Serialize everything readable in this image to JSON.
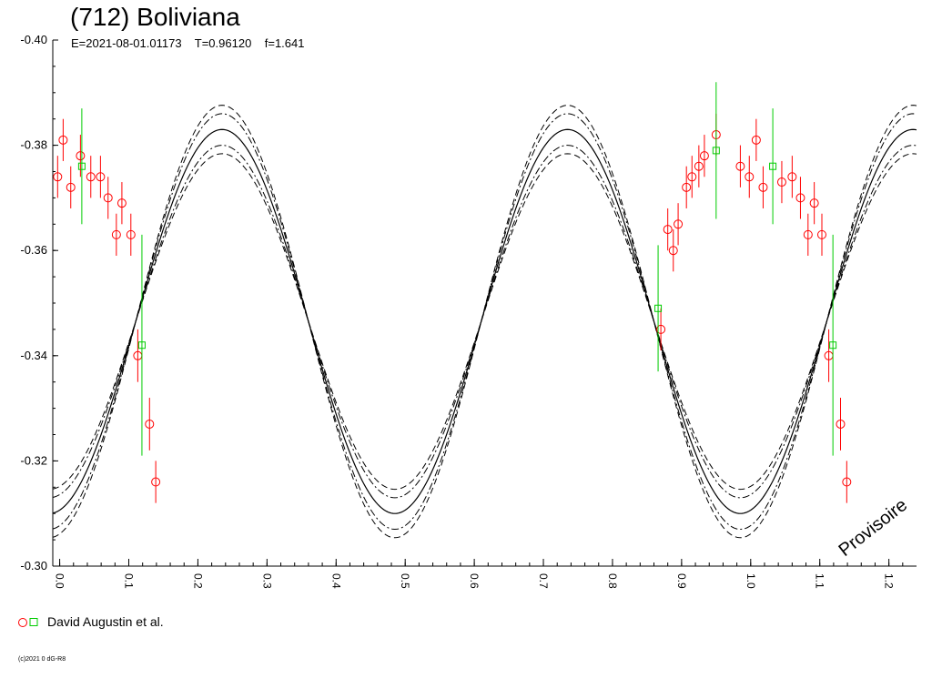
{
  "header": {
    "title": "(712) Boliviana",
    "subtitle": "E=2021-08-01.01173    T=0.96120    f=1.641"
  },
  "legend": {
    "label": "David Augustin et al.",
    "marker_colors": [
      "#ff0000",
      "#00cc00"
    ]
  },
  "watermark": "Provisoire",
  "copyright": "(c)2021 0 dG-R8",
  "colors": {
    "fit": "#000000",
    "obs_red": "#ff0000",
    "obs_green": "#00cc00"
  },
  "chart_data": {
    "type": "scatter",
    "xlim": [
      -0.01,
      1.24
    ],
    "ylim": [
      -0.3,
      -0.4
    ],
    "y_axis_inverted": true,
    "xticks": [
      0.0,
      0.1,
      0.2,
      0.3,
      0.4,
      0.5,
      0.6,
      0.7,
      0.8,
      0.9,
      1.0,
      1.1,
      1.2
    ],
    "xtick_labels": [
      "0.0",
      "0.1",
      "0.2",
      "0.3",
      "0.4",
      "0.5",
      "0.6",
      "0.7",
      "0.8",
      "0.9",
      "1.0",
      "1.1",
      "1.2"
    ],
    "yticks": [
      -0.3,
      -0.32,
      -0.34,
      -0.36,
      -0.38,
      -0.4
    ],
    "ytick_labels": [
      "-0.30",
      "-0.32",
      "-0.34",
      "-0.36",
      "-0.38",
      "-0.40"
    ],
    "fit": {
      "model": "mag = center + amplitude * cos(4*pi*(phase - phase_max))",
      "center": -0.3465,
      "amplitude": 0.0365,
      "phase_max": 0.485,
      "envelopes": [
        {
          "style": "dashdot",
          "offsets": [
            -0.003,
            0.003
          ]
        },
        {
          "style": "dashed",
          "offsets": [
            -0.0046,
            0.0046
          ]
        }
      ]
    },
    "series": [
      {
        "color": "#ff0000",
        "marker": "circle",
        "points": [
          {
            "x": -0.003,
            "y": -0.374,
            "err": 0.004
          },
          {
            "x": 0.005,
            "y": -0.381,
            "err": 0.004
          },
          {
            "x": 0.016,
            "y": -0.372,
            "err": 0.004
          },
          {
            "x": 0.03,
            "y": -0.378,
            "err": 0.004
          },
          {
            "x": 0.045,
            "y": -0.374,
            "err": 0.004
          },
          {
            "x": 0.059,
            "y": -0.374,
            "err": 0.004
          },
          {
            "x": 0.07,
            "y": -0.37,
            "err": 0.004
          },
          {
            "x": 0.082,
            "y": -0.363,
            "err": 0.004
          },
          {
            "x": 0.09,
            "y": -0.369,
            "err": 0.004
          },
          {
            "x": 0.103,
            "y": -0.363,
            "err": 0.004
          },
          {
            "x": 0.113,
            "y": -0.34,
            "err": 0.005
          },
          {
            "x": 0.13,
            "y": -0.327,
            "err": 0.005
          },
          {
            "x": 0.139,
            "y": -0.316,
            "err": 0.004
          },
          {
            "x": 0.87,
            "y": -0.345,
            "err": 0.004
          },
          {
            "x": 0.88,
            "y": -0.364,
            "err": 0.004
          },
          {
            "x": 0.888,
            "y": -0.36,
            "err": 0.004
          },
          {
            "x": 0.895,
            "y": -0.365,
            "err": 0.004
          },
          {
            "x": 0.907,
            "y": -0.372,
            "err": 0.004
          },
          {
            "x": 0.915,
            "y": -0.374,
            "err": 0.004
          },
          {
            "x": 0.925,
            "y": -0.376,
            "err": 0.004
          },
          {
            "x": 0.933,
            "y": -0.378,
            "err": 0.004
          },
          {
            "x": 0.95,
            "y": -0.382,
            "err": 0.004
          },
          {
            "x": 0.985,
            "y": -0.376,
            "err": 0.004
          },
          {
            "x": 0.998,
            "y": -0.374,
            "err": 0.004
          },
          {
            "x": 1.008,
            "y": -0.381,
            "err": 0.004
          },
          {
            "x": 1.018,
            "y": -0.372,
            "err": 0.004
          },
          {
            "x": 1.045,
            "y": -0.373,
            "err": 0.004
          },
          {
            "x": 1.06,
            "y": -0.374,
            "err": 0.004
          },
          {
            "x": 1.072,
            "y": -0.37,
            "err": 0.004
          },
          {
            "x": 1.083,
            "y": -0.363,
            "err": 0.004
          },
          {
            "x": 1.092,
            "y": -0.369,
            "err": 0.004
          },
          {
            "x": 1.103,
            "y": -0.363,
            "err": 0.004
          },
          {
            "x": 1.113,
            "y": -0.34,
            "err": 0.005
          },
          {
            "x": 1.13,
            "y": -0.327,
            "err": 0.005
          },
          {
            "x": 1.139,
            "y": -0.316,
            "err": 0.004
          }
        ]
      },
      {
        "color": "#00cc00",
        "marker": "square",
        "points": [
          {
            "x": 0.032,
            "y": -0.376,
            "err": 0.011
          },
          {
            "x": 0.119,
            "y": -0.342,
            "err": 0.021
          },
          {
            "x": 0.866,
            "y": -0.349,
            "err": 0.012
          },
          {
            "x": 0.95,
            "y": -0.379,
            "err": 0.013
          },
          {
            "x": 1.032,
            "y": -0.376,
            "err": 0.011
          },
          {
            "x": 1.119,
            "y": -0.342,
            "err": 0.021
          }
        ]
      }
    ]
  }
}
